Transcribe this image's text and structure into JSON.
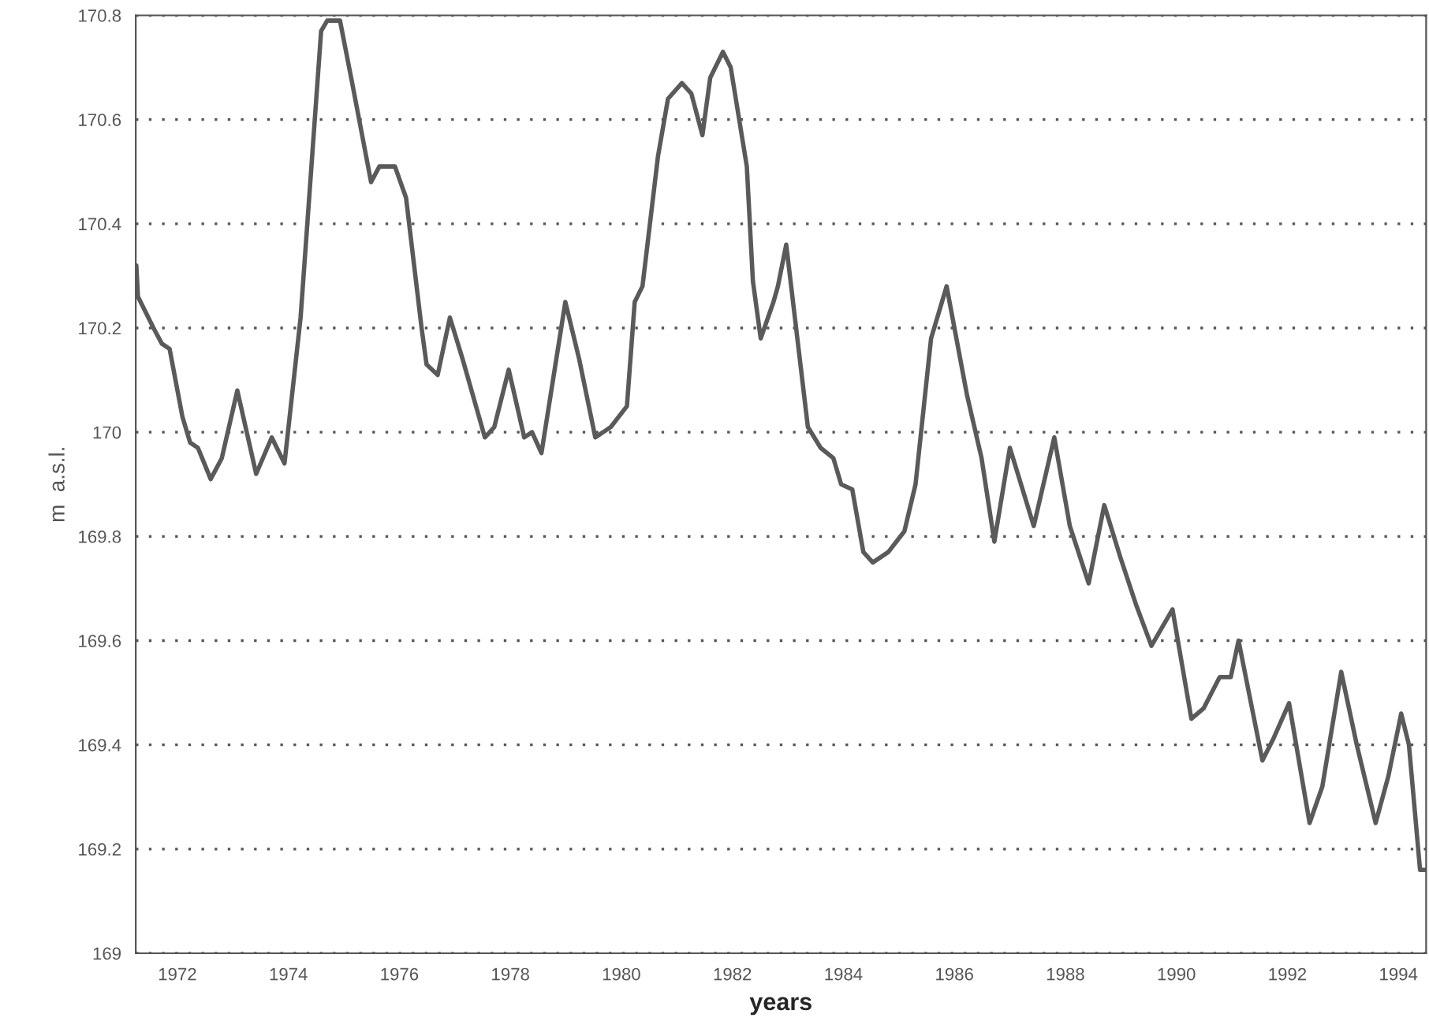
{
  "chart_data": {
    "type": "line",
    "xlabel": "years",
    "ylabel": "m  a.s.l.",
    "xlim": [
      1971.25,
      1994.5
    ],
    "xticks": [
      1972,
      1974,
      1976,
      1978,
      1980,
      1982,
      1984,
      1986,
      1988,
      1990,
      1992,
      1994
    ],
    "ylim": [
      169,
      170.8
    ],
    "yticks": [
      169,
      169.2,
      169.4,
      169.6,
      169.8,
      170,
      170.2,
      170.4,
      170.6,
      170.8
    ],
    "grid": "y",
    "legend": false,
    "marker": "none",
    "line_style": "solid",
    "series": [
      {
        "color": "#5a5a5a",
        "x": [
          1971.26,
          1971.29,
          1971.57,
          1971.72,
          1971.86,
          1972.09,
          1972.23,
          1972.37,
          1972.6,
          1972.8,
          1973.08,
          1973.42,
          1973.7,
          1973.93,
          1974.22,
          1974.59,
          1974.7,
          1974.93,
          1975.15,
          1975.49,
          1975.64,
          1975.92,
          1976.12,
          1976.4,
          1976.49,
          1976.69,
          1976.91,
          1977.14,
          1977.54,
          1977.71,
          1977.97,
          1978.25,
          1978.39,
          1978.56,
          1978.99,
          1979.24,
          1979.53,
          1979.81,
          1980.1,
          1980.24,
          1980.38,
          1980.66,
          1980.84,
          1981.09,
          1981.26,
          1981.46,
          1981.6,
          1981.83,
          1981.97,
          1982.26,
          1982.37,
          1982.51,
          1982.74,
          1982.82,
          1982.97,
          1983.36,
          1983.59,
          1983.82,
          1983.96,
          1984.16,
          1984.36,
          1984.53,
          1984.81,
          1985.1,
          1985.3,
          1985.58,
          1985.86,
          1986.23,
          1986.49,
          1986.72,
          1987.0,
          1987.43,
          1987.8,
          1988.08,
          1988.42,
          1988.7,
          1988.99,
          1989.27,
          1989.55,
          1989.93,
          1990.27,
          1990.49,
          1990.78,
          1990.98,
          1991.12,
          1991.55,
          1991.74,
          1992.03,
          1992.4,
          1992.63,
          1992.97,
          1993.25,
          1993.59,
          1993.82,
          1994.05,
          1994.19,
          1994.39,
          1994.48
        ],
        "values": [
          170.32,
          170.26,
          170.2,
          170.17,
          170.16,
          170.03,
          169.98,
          169.97,
          169.91,
          169.95,
          170.08,
          169.92,
          169.99,
          169.94,
          170.22,
          170.77,
          170.79,
          170.79,
          170.67,
          170.48,
          170.51,
          170.51,
          170.45,
          170.2,
          170.13,
          170.11,
          170.22,
          170.14,
          169.99,
          170.01,
          170.12,
          169.99,
          170.0,
          169.96,
          170.25,
          170.14,
          169.99,
          170.01,
          170.05,
          170.25,
          170.28,
          170.53,
          170.64,
          170.67,
          170.65,
          170.57,
          170.68,
          170.73,
          170.7,
          170.51,
          170.29,
          170.18,
          170.25,
          170.28,
          170.36,
          170.01,
          169.97,
          169.95,
          169.9,
          169.89,
          169.77,
          169.75,
          169.77,
          169.81,
          169.9,
          170.18,
          170.28,
          170.07,
          169.95,
          169.79,
          169.97,
          169.82,
          169.99,
          169.82,
          169.71,
          169.86,
          169.76,
          169.67,
          169.59,
          169.66,
          169.45,
          169.47,
          169.53,
          169.53,
          169.6,
          169.37,
          169.41,
          169.48,
          169.25,
          169.32,
          169.54,
          169.4,
          169.25,
          169.34,
          169.46,
          169.4,
          169.16,
          169.16
        ]
      }
    ]
  }
}
